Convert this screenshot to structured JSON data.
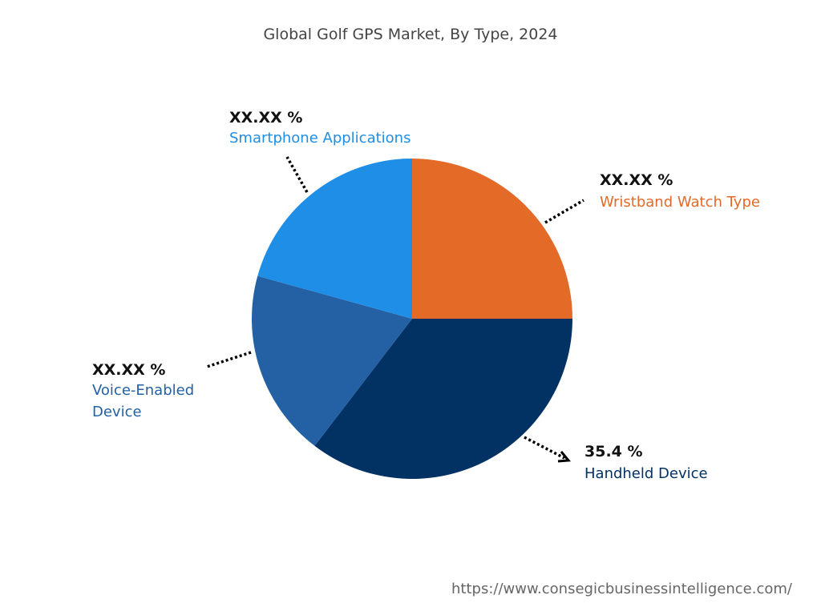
{
  "chart_data": {
    "type": "pie",
    "title": "Global Golf GPS Market, By Type, 2024",
    "start_angle_deg": 0,
    "direction": "clockwise",
    "slices": [
      {
        "name": "Wristband Watch Type",
        "value": 25.0,
        "label": "XX.XX %",
        "color": "#E36A27"
      },
      {
        "name": "Handheld Device",
        "value": 35.4,
        "label": "35.4 %",
        "color": "#023263"
      },
      {
        "name": "Voice-Enabled Device",
        "value": 18.9,
        "label": "XX.XX %",
        "color": "#2361A4"
      },
      {
        "name": "Smartphone Applications",
        "value": 20.7,
        "label": "XX.XX %",
        "color": "#1E8EE6"
      }
    ]
  },
  "source_url": "https://www.consegicbusinessintelligence.com/"
}
